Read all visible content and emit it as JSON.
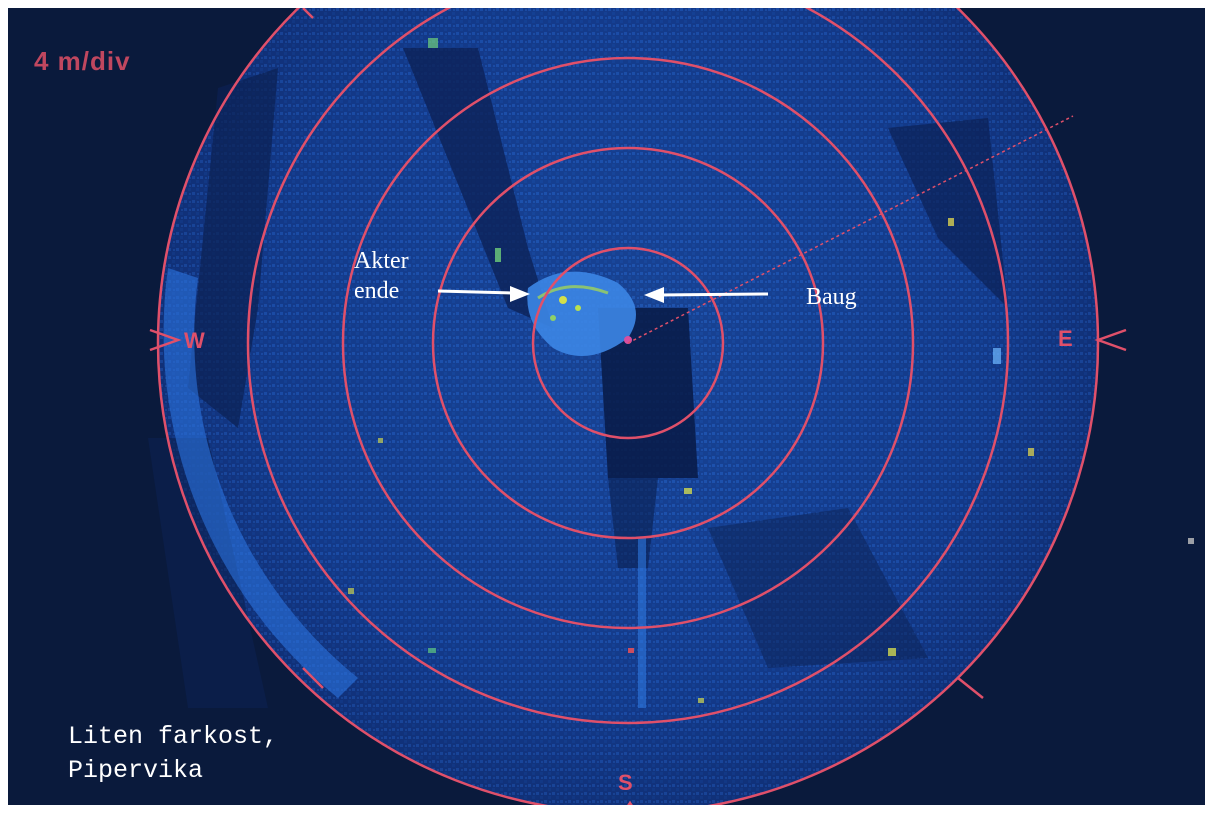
{
  "scale_label": "4 m/div",
  "annotations": {
    "stern_line1": "Akter",
    "stern_line2": "ende",
    "bow": "Baug"
  },
  "caption": {
    "line1": "Liten farkost,",
    "line2": "Pipervika"
  },
  "compass": {
    "west": "W",
    "east": "E",
    "south": "S"
  },
  "colors": {
    "background": "#0a1a3c",
    "sonar_blue": "#1f5fd0",
    "ring": "#e0506a",
    "text": "#ffffff"
  }
}
